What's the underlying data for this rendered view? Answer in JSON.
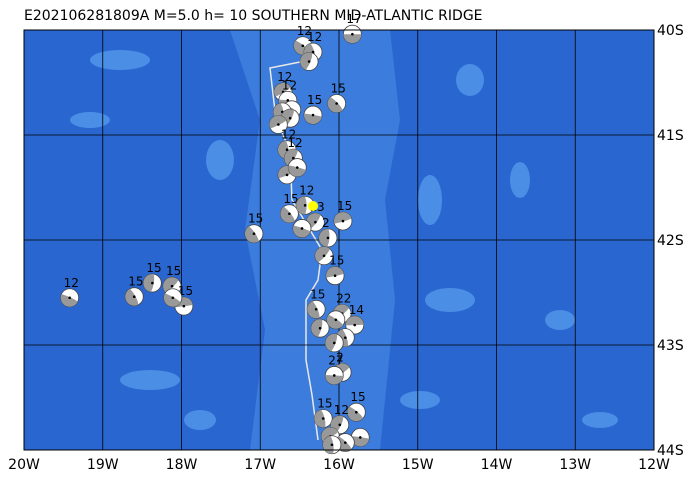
{
  "title": "E202106281809A M=5.0 h= 10 SOUTHERN MID-ATLANTIC RIDGE",
  "map": {
    "xlim": [
      -20,
      -12
    ],
    "ylim": [
      -40,
      -44
    ],
    "xticks": [
      {
        "value": -20,
        "label": "20W"
      },
      {
        "value": -19,
        "label": "19W"
      },
      {
        "value": -18,
        "label": "18W"
      },
      {
        "value": -17,
        "label": "17W"
      },
      {
        "value": -16,
        "label": "16W"
      },
      {
        "value": -15,
        "label": "15W"
      },
      {
        "value": -14,
        "label": "14W"
      },
      {
        "value": -13,
        "label": "13W"
      },
      {
        "value": -12,
        "label": "12W"
      }
    ],
    "yticks": [
      {
        "value": -40,
        "label": "40S"
      },
      {
        "value": -41,
        "label": "41S"
      },
      {
        "value": -42,
        "label": "42S"
      },
      {
        "value": -43,
        "label": "43S"
      },
      {
        "value": -44,
        "label": "44S"
      }
    ],
    "events": [
      {
        "lon": -15.83,
        "lat": -40.04,
        "label": "17"
      },
      {
        "lon": -16.46,
        "lat": -40.15,
        "label": "12"
      },
      {
        "lon": -16.33,
        "lat": -40.21,
        "label": "12"
      },
      {
        "lon": -16.38,
        "lat": -40.3
      },
      {
        "lon": -16.71,
        "lat": -40.59,
        "label": "12"
      },
      {
        "lon": -16.65,
        "lat": -40.67,
        "label": "12"
      },
      {
        "lon": -16.6,
        "lat": -40.76
      },
      {
        "lon": -16.72,
        "lat": -40.78
      },
      {
        "lon": -16.62,
        "lat": -40.84
      },
      {
        "lon": -16.77,
        "lat": -40.9
      },
      {
        "lon": -16.33,
        "lat": -40.81,
        "label": "15"
      },
      {
        "lon": -16.03,
        "lat": -40.7,
        "label": "15"
      },
      {
        "lon": -16.66,
        "lat": -41.14,
        "label": "12"
      },
      {
        "lon": -16.58,
        "lat": -41.22,
        "label": "12"
      },
      {
        "lon": -16.66,
        "lat": -41.38
      },
      {
        "lon": -16.53,
        "lat": -41.31
      },
      {
        "lon": -16.63,
        "lat": -41.75,
        "label": "15"
      },
      {
        "lon": -16.43,
        "lat": -41.67,
        "label": "12"
      },
      {
        "lon": -16.3,
        "lat": -41.83,
        "label": "13"
      },
      {
        "lon": -15.95,
        "lat": -41.82,
        "label": "15"
      },
      {
        "lon": -16.47,
        "lat": -41.89
      },
      {
        "lon": -17.08,
        "lat": -41.94,
        "label": "15"
      },
      {
        "lon": -16.14,
        "lat": -41.98,
        "label": "2"
      },
      {
        "lon": -16.19,
        "lat": -42.15
      },
      {
        "lon": -16.05,
        "lat": -42.34,
        "label": "15"
      },
      {
        "lon": -19.42,
        "lat": -42.55,
        "label": "12"
      },
      {
        "lon": -18.6,
        "lat": -42.54,
        "label": "15"
      },
      {
        "lon": -18.37,
        "lat": -42.41,
        "label": "15"
      },
      {
        "lon": -18.12,
        "lat": -42.44,
        "label": "15"
      },
      {
        "lon": -17.97,
        "lat": -42.63,
        "label": "15"
      },
      {
        "lon": -18.11,
        "lat": -42.55
      },
      {
        "lon": -16.29,
        "lat": -42.66,
        "label": "15"
      },
      {
        "lon": -16.24,
        "lat": -42.84
      },
      {
        "lon": -15.96,
        "lat": -42.7,
        "label": "22"
      },
      {
        "lon": -15.8,
        "lat": -42.81,
        "label": "14"
      },
      {
        "lon": -16.04,
        "lat": -42.76
      },
      {
        "lon": -15.92,
        "lat": -42.93
      },
      {
        "lon": -16.06,
        "lat": -42.98
      },
      {
        "lon": -15.96,
        "lat": -43.26,
        "label": "2"
      },
      {
        "lon": -16.06,
        "lat": -43.29,
        "label": "27"
      },
      {
        "lon": -15.78,
        "lat": -43.64,
        "label": "15"
      },
      {
        "lon": -16.2,
        "lat": -43.7,
        "label": "15"
      },
      {
        "lon": -15.99,
        "lat": -43.76,
        "label": "12"
      },
      {
        "lon": -16.11,
        "lat": -43.87
      },
      {
        "lon": -15.73,
        "lat": -43.88
      },
      {
        "lon": -15.92,
        "lat": -43.93
      },
      {
        "lon": -16.09,
        "lat": -43.95
      }
    ]
  }
}
